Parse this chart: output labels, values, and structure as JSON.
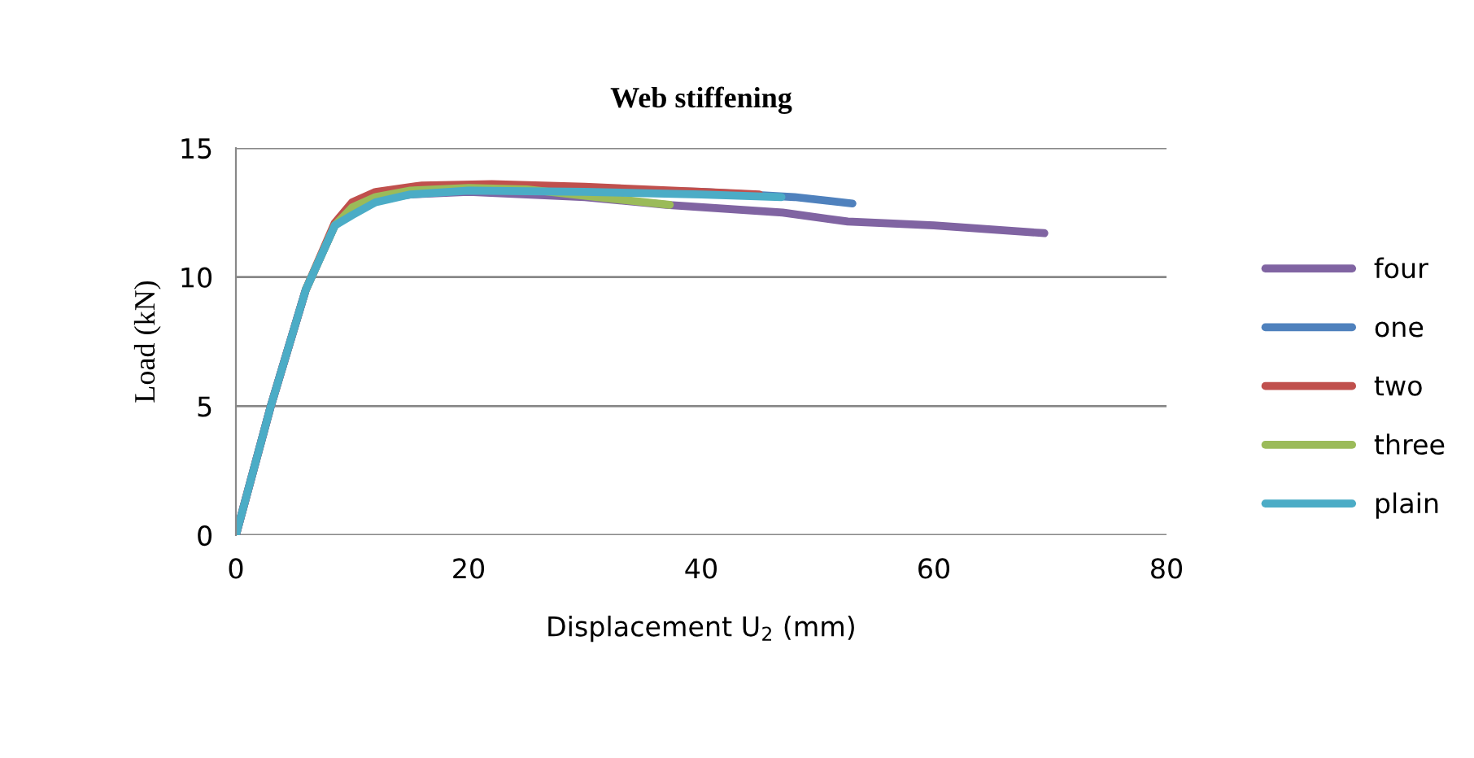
{
  "chart_data": {
    "type": "line",
    "title": "Web stiffening",
    "xlabel": "Displacement U$_{2}$ (mm)",
    "ylabel": "Load (kN)",
    "xlim": [
      0,
      80
    ],
    "xticks": [
      0,
      20,
      40,
      60,
      80
    ],
    "ylim": [
      0,
      15
    ],
    "yticks": [
      0,
      5,
      10,
      15
    ],
    "grid": "y",
    "legend": "right",
    "marker": "none",
    "line_style": "solid",
    "series": [
      {
        "name": "four",
        "color": "#8064a2",
        "x": [
          0,
          3,
          6,
          8.5,
          10,
          12,
          15,
          20,
          30,
          37,
          47,
          52.6,
          60,
          69.5
        ],
        "values": [
          0,
          5,
          9.5,
          12,
          12.6,
          13,
          13.2,
          13.3,
          13.1,
          12.8,
          12.5,
          12.15,
          12,
          11.7
        ]
      },
      {
        "name": "one",
        "color": "#4f81bd",
        "x": [
          0,
          3,
          6,
          8.5,
          10,
          12,
          15,
          20,
          30,
          40,
          48,
          53
        ],
        "values": [
          0,
          5,
          9.5,
          12,
          12.7,
          13.1,
          13.4,
          13.5,
          13.4,
          13.3,
          13.1,
          12.85
        ]
      },
      {
        "name": "two",
        "color": "#c0504d",
        "x": [
          0,
          3,
          6,
          8.5,
          10,
          12,
          16,
          22,
          30,
          40,
          45
        ],
        "values": [
          0,
          5,
          9.5,
          12.1,
          12.9,
          13.3,
          13.55,
          13.6,
          13.5,
          13.3,
          13.2
        ]
      },
      {
        "name": "three",
        "color": "#9bbb59",
        "x": [
          6,
          8.5,
          10,
          12,
          15,
          20,
          25,
          30,
          37.3
        ],
        "values": [
          9.5,
          12,
          12.7,
          13.1,
          13.35,
          13.45,
          13.4,
          13.15,
          12.8
        ]
      },
      {
        "name": "plain",
        "color": "#4bacc6",
        "x": [
          0,
          3,
          6,
          8.5,
          10,
          12,
          15,
          20,
          30,
          40,
          46.9
        ],
        "values": [
          0,
          5,
          9.5,
          12,
          12.4,
          12.9,
          13.2,
          13.35,
          13.3,
          13.2,
          13.1
        ]
      }
    ]
  }
}
